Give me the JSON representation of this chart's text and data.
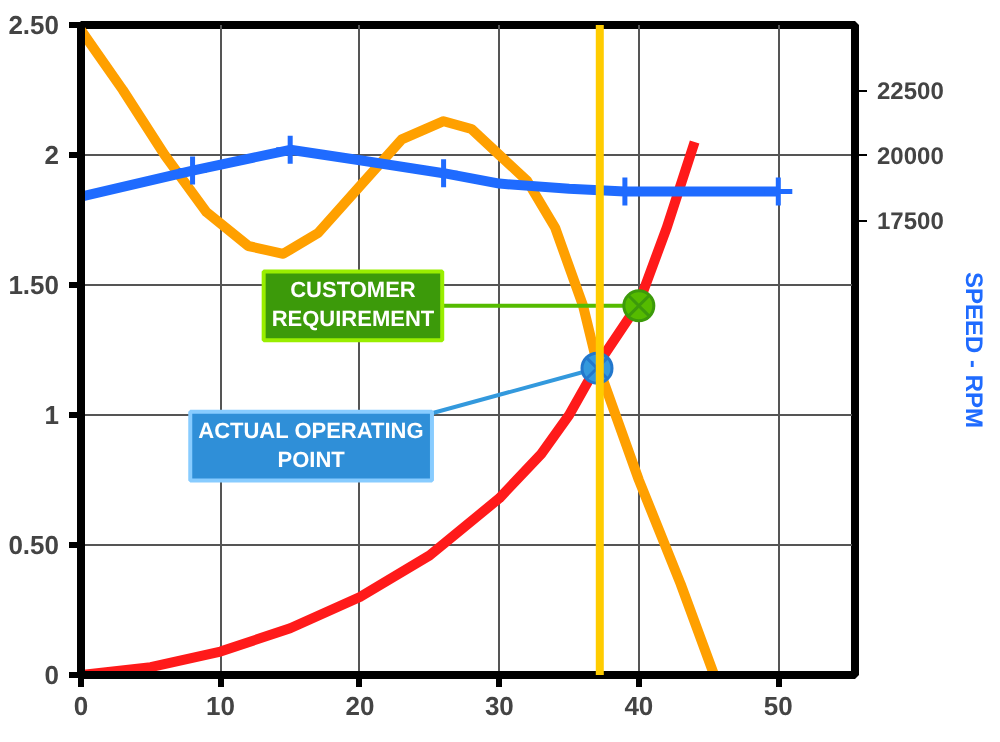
{
  "chart_data": {
    "type": "line",
    "xlim": [
      0,
      55.5
    ],
    "xticks": [
      0,
      10,
      20,
      30,
      40,
      50
    ],
    "ylim": [
      0,
      2.5
    ],
    "yticks": [
      0,
      {
        "value": 0.5,
        "label": "0.50"
      },
      1,
      {
        "value": 1.5,
        "label": "1.50"
      },
      2,
      {
        "value": 2.5,
        "label": "2.50"
      }
    ],
    "y2lim": [
      0,
      25000
    ],
    "y2ticks": [
      17500,
      20000,
      22500
    ],
    "y2label": "SPEED - RPM",
    "grid": true,
    "line_style": "solid",
    "series": [
      {
        "color": "#ffa000",
        "x": [
          0,
          3,
          6,
          9,
          12,
          14.5,
          17,
          20,
          23,
          26,
          28,
          30,
          32,
          34,
          36,
          37,
          40,
          43,
          45.4
        ],
        "values": [
          2.48,
          2.25,
          2.0,
          1.78,
          1.65,
          1.62,
          1.7,
          1.88,
          2.06,
          2.13,
          2.1,
          2.0,
          1.9,
          1.72,
          1.42,
          1.2,
          0.75,
          0.35,
          0
        ]
      },
      {
        "color": "#ff1a1a",
        "x": [
          0,
          5,
          10,
          15,
          20,
          25,
          30,
          33,
          35,
          37,
          40,
          42,
          44
        ],
        "values": [
          0,
          0.03,
          0.09,
          0.18,
          0.3,
          0.46,
          0.68,
          0.85,
          1.0,
          1.19,
          1.43,
          1.72,
          2.05
        ]
      },
      {
        "color": "#1f6bff",
        "axis": "y2",
        "x": [
          0,
          8,
          15,
          20,
          26,
          30,
          35,
          39,
          45,
          50
        ],
        "values": [
          18400,
          19400,
          20200,
          19800,
          19300,
          18900,
          18700,
          18600,
          18600,
          18600
        ]
      },
      {
        "type": "scatter",
        "marker": "cross",
        "color": "#1f6bff",
        "axis": "y2",
        "x": [
          8,
          15,
          26,
          39,
          50
        ],
        "values": [
          19400,
          20200,
          19300,
          18600,
          18600
        ]
      }
    ],
    "ref_lines": [
      {
        "axis": "x",
        "value": 37.2,
        "color": "#ffcc00"
      }
    ],
    "annotations": [
      {
        "text": "CUSTOMER REQUIREMENT",
        "x": 40,
        "y": 1.42
      },
      {
        "text": "ACTUAL OPERATING POINT",
        "x": 37,
        "y": 1.18
      }
    ]
  }
}
